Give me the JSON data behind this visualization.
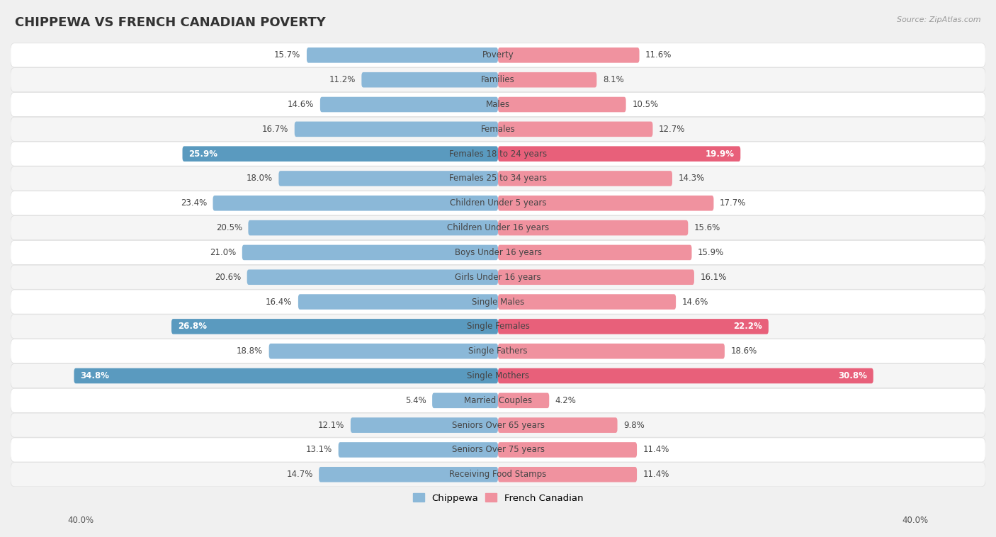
{
  "title": "CHIPPEWA VS FRENCH CANADIAN POVERTY",
  "source": "Source: ZipAtlas.com",
  "categories": [
    "Poverty",
    "Families",
    "Males",
    "Females",
    "Females 18 to 24 years",
    "Females 25 to 34 years",
    "Children Under 5 years",
    "Children Under 16 years",
    "Boys Under 16 years",
    "Girls Under 16 years",
    "Single Males",
    "Single Females",
    "Single Fathers",
    "Single Mothers",
    "Married Couples",
    "Seniors Over 65 years",
    "Seniors Over 75 years",
    "Receiving Food Stamps"
  ],
  "chippewa": [
    15.7,
    11.2,
    14.6,
    16.7,
    25.9,
    18.0,
    23.4,
    20.5,
    21.0,
    20.6,
    16.4,
    26.8,
    18.8,
    34.8,
    5.4,
    12.1,
    13.1,
    14.7
  ],
  "french_canadian": [
    11.6,
    8.1,
    10.5,
    12.7,
    19.9,
    14.3,
    17.7,
    15.6,
    15.9,
    16.1,
    14.6,
    22.2,
    18.6,
    30.8,
    4.2,
    9.8,
    11.4,
    11.4
  ],
  "chippewa_color": "#8bb8d8",
  "french_canadian_color": "#f0929f",
  "chippewa_highlight_color": "#5a9abf",
  "french_canadian_highlight_color": "#e8607a",
  "highlight_rows": [
    4,
    11,
    13
  ],
  "axis_limit": 40.0,
  "bg_color": "#f0f0f0",
  "row_bg_color": "#ffffff",
  "row_alt_bg_color": "#f5f5f5",
  "title_fontsize": 13,
  "label_fontsize": 9,
  "value_fontsize": 8.5,
  "bar_height": 0.62
}
